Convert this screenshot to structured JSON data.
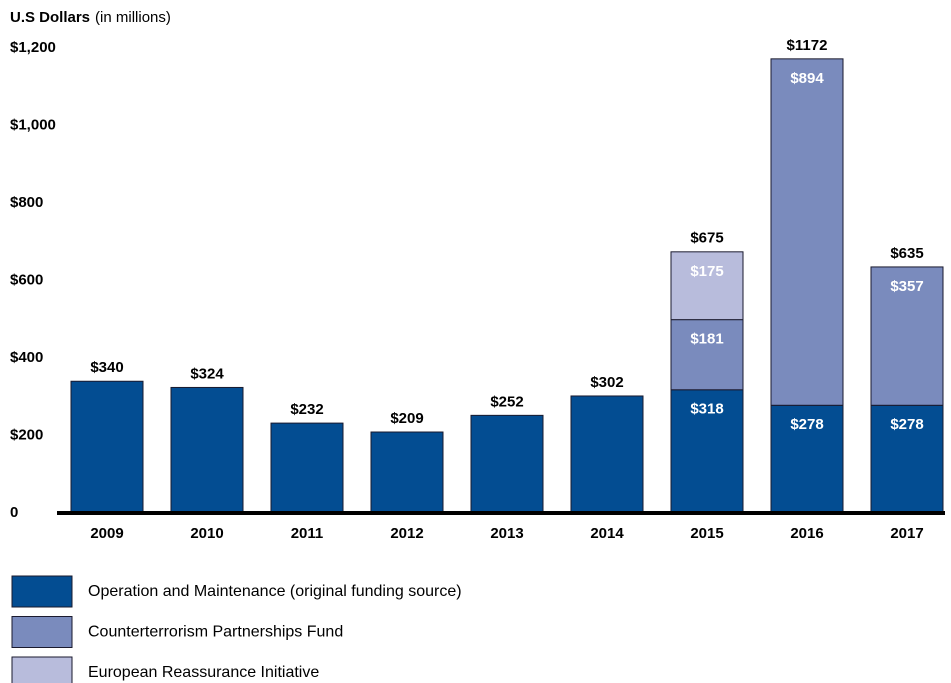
{
  "chart_data": {
    "type": "stacked_bar",
    "y_axis_label": "U.S Dollars",
    "y_axis_unit": "(in millions)",
    "categories": [
      "2009",
      "2010",
      "2011",
      "2012",
      "2013",
      "2014",
      "2015",
      "2016",
      "2017"
    ],
    "series": [
      {
        "name": "Operation and Maintenance (original funding source)",
        "color": "#034d92",
        "values": [
          340,
          324,
          232,
          209,
          252,
          302,
          318,
          278,
          278
        ],
        "value_labels": [
          "$340",
          "$324",
          "$232",
          "$209",
          "$252",
          "$302",
          "$318",
          "$278",
          "$278"
        ]
      },
      {
        "name": "Counterterrorism Partnerships Fund",
        "color": "#7a8bbd",
        "values": [
          null,
          null,
          null,
          null,
          null,
          null,
          181,
          894,
          357
        ],
        "value_labels": [
          null,
          null,
          null,
          null,
          null,
          null,
          "$181",
          "$894",
          "$357"
        ]
      },
      {
        "name": "European Reassurance Initiative",
        "color": "#b8bcdc",
        "values": [
          null,
          null,
          null,
          null,
          null,
          null,
          175,
          null,
          null
        ],
        "value_labels": [
          null,
          null,
          null,
          null,
          null,
          null,
          "$175",
          null,
          null
        ]
      }
    ],
    "totals": [
      null,
      null,
      null,
      null,
      null,
      null,
      675,
      1172,
      635
    ],
    "total_labels": [
      null,
      null,
      null,
      null,
      null,
      null,
      "$675",
      "$1172",
      "$635"
    ],
    "ylim": [
      0,
      1200
    ],
    "yticks": [
      0,
      {
        "value": 200,
        "label": "$200"
      },
      {
        "value": 400,
        "label": "$400"
      },
      {
        "value": 600,
        "label": "$600"
      },
      {
        "value": 800,
        "label": "$800"
      },
      {
        "value": 1000,
        "label": "$1,000"
      },
      {
        "value": 1200,
        "label": "$1,200"
      }
    ],
    "grid": false
  }
}
